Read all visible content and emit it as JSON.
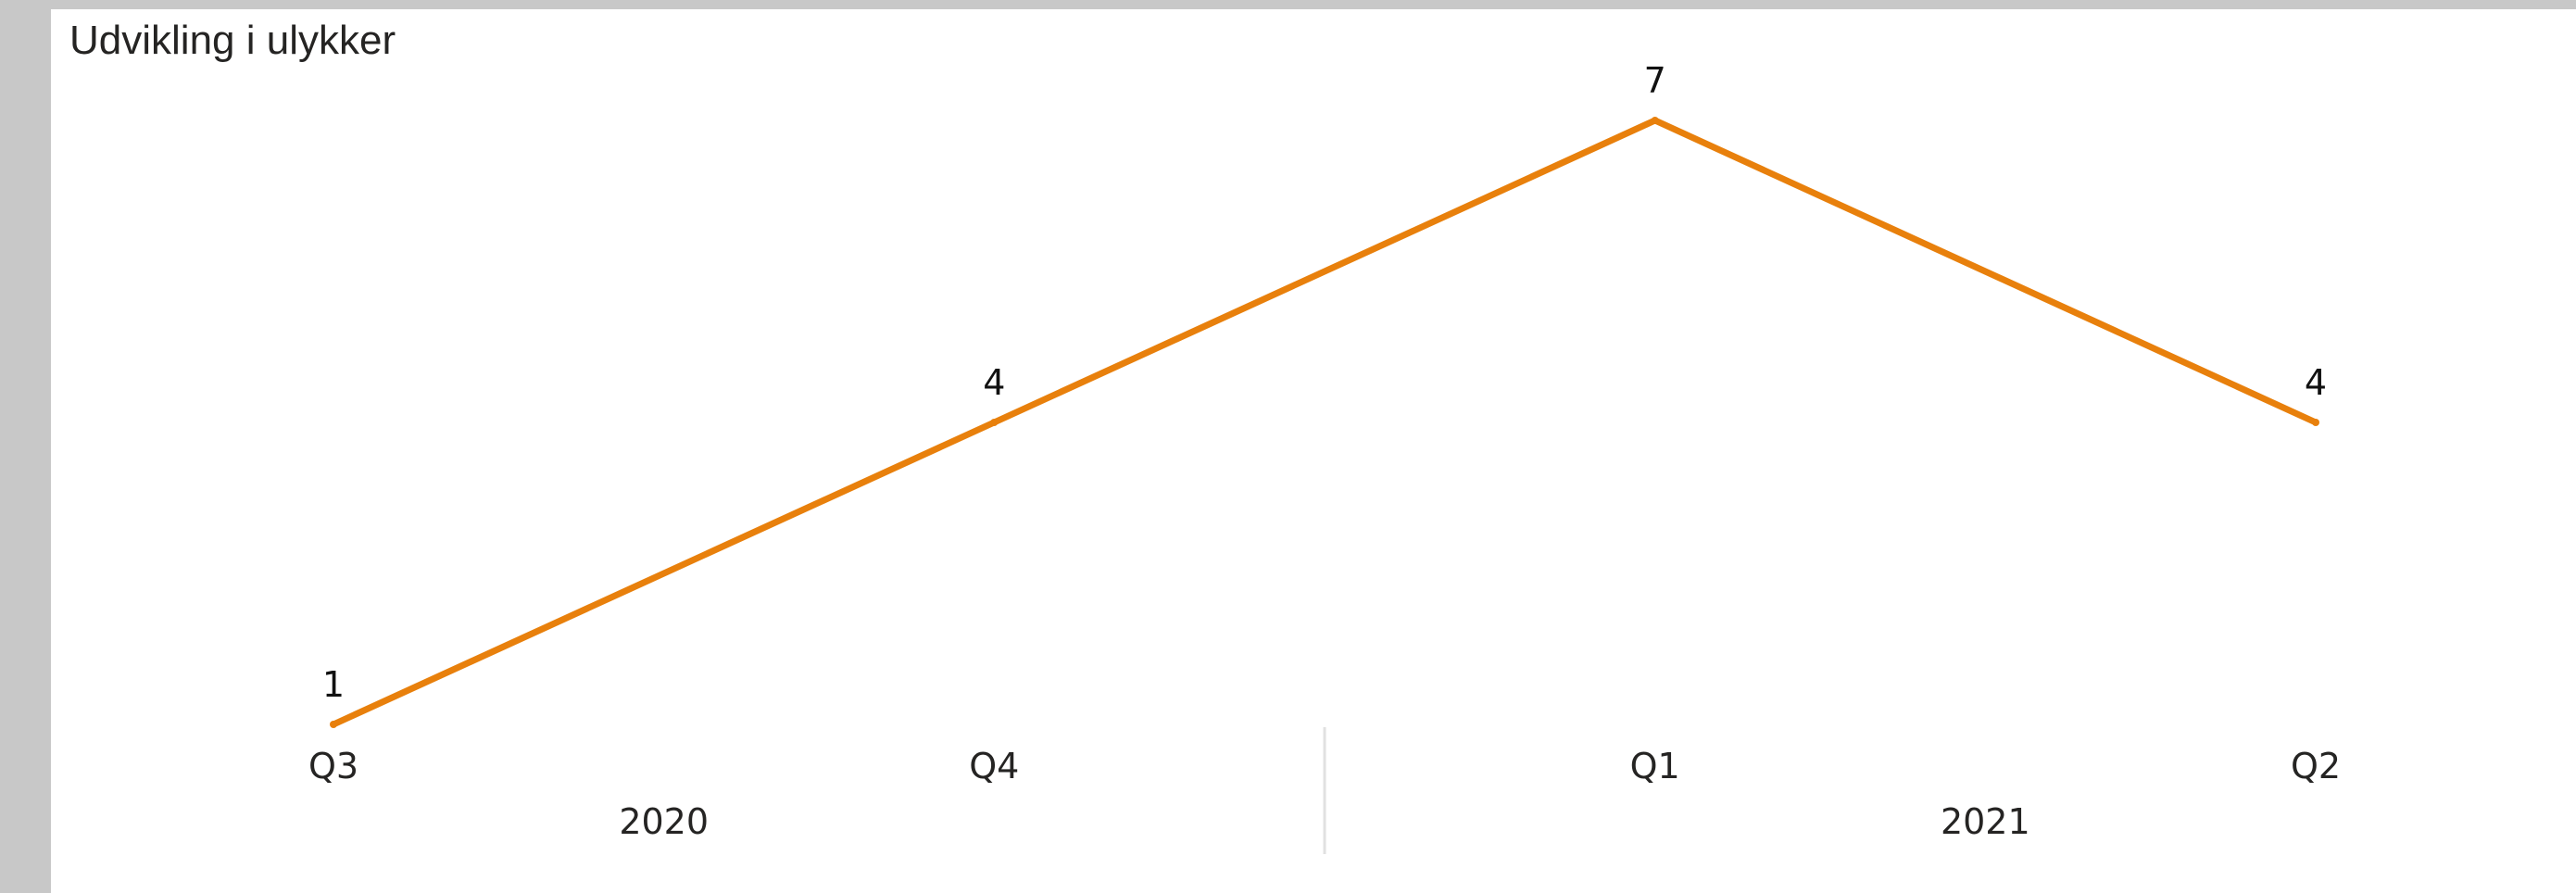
{
  "chart_data": {
    "type": "line",
    "title": "Udvikling i ulykker",
    "xlabel": "",
    "ylabel": "",
    "categories": [
      {
        "quarter": "Q3",
        "year": "2020"
      },
      {
        "quarter": "Q4",
        "year": "2020"
      },
      {
        "quarter": "Q1",
        "year": "2021"
      },
      {
        "quarter": "Q2",
        "year": "2021"
      }
    ],
    "year_groups": [
      "2020",
      "2021"
    ],
    "series": [
      {
        "values": [
          1,
          4,
          7,
          4
        ],
        "color": "#e8800c"
      }
    ],
    "data_labels": [
      "1",
      "4",
      "7",
      "4"
    ],
    "ylim": [
      1,
      7
    ],
    "grid": false,
    "legend": "none"
  }
}
